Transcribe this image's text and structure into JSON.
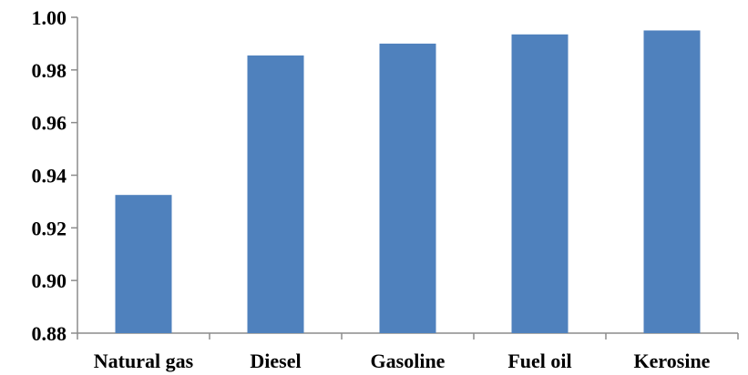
{
  "chart_data": {
    "type": "bar",
    "categories": [
      "Natural gas",
      "Diesel",
      "Gasoline",
      "Fuel oil",
      "Kerosine"
    ],
    "values": [
      0.9325,
      0.9855,
      0.99,
      0.9935,
      0.995
    ],
    "ylim": [
      0.88,
      1.0
    ],
    "yticks": [
      "0.88",
      "0.90",
      "0.92",
      "0.94",
      "0.96",
      "0.98",
      "1.00"
    ],
    "title": "",
    "xlabel": "",
    "ylabel": "",
    "grid": false,
    "legend": "none",
    "colors": {
      "bar": "#4f81bd",
      "axis": "#8c8c8c",
      "text": "#000000"
    }
  }
}
